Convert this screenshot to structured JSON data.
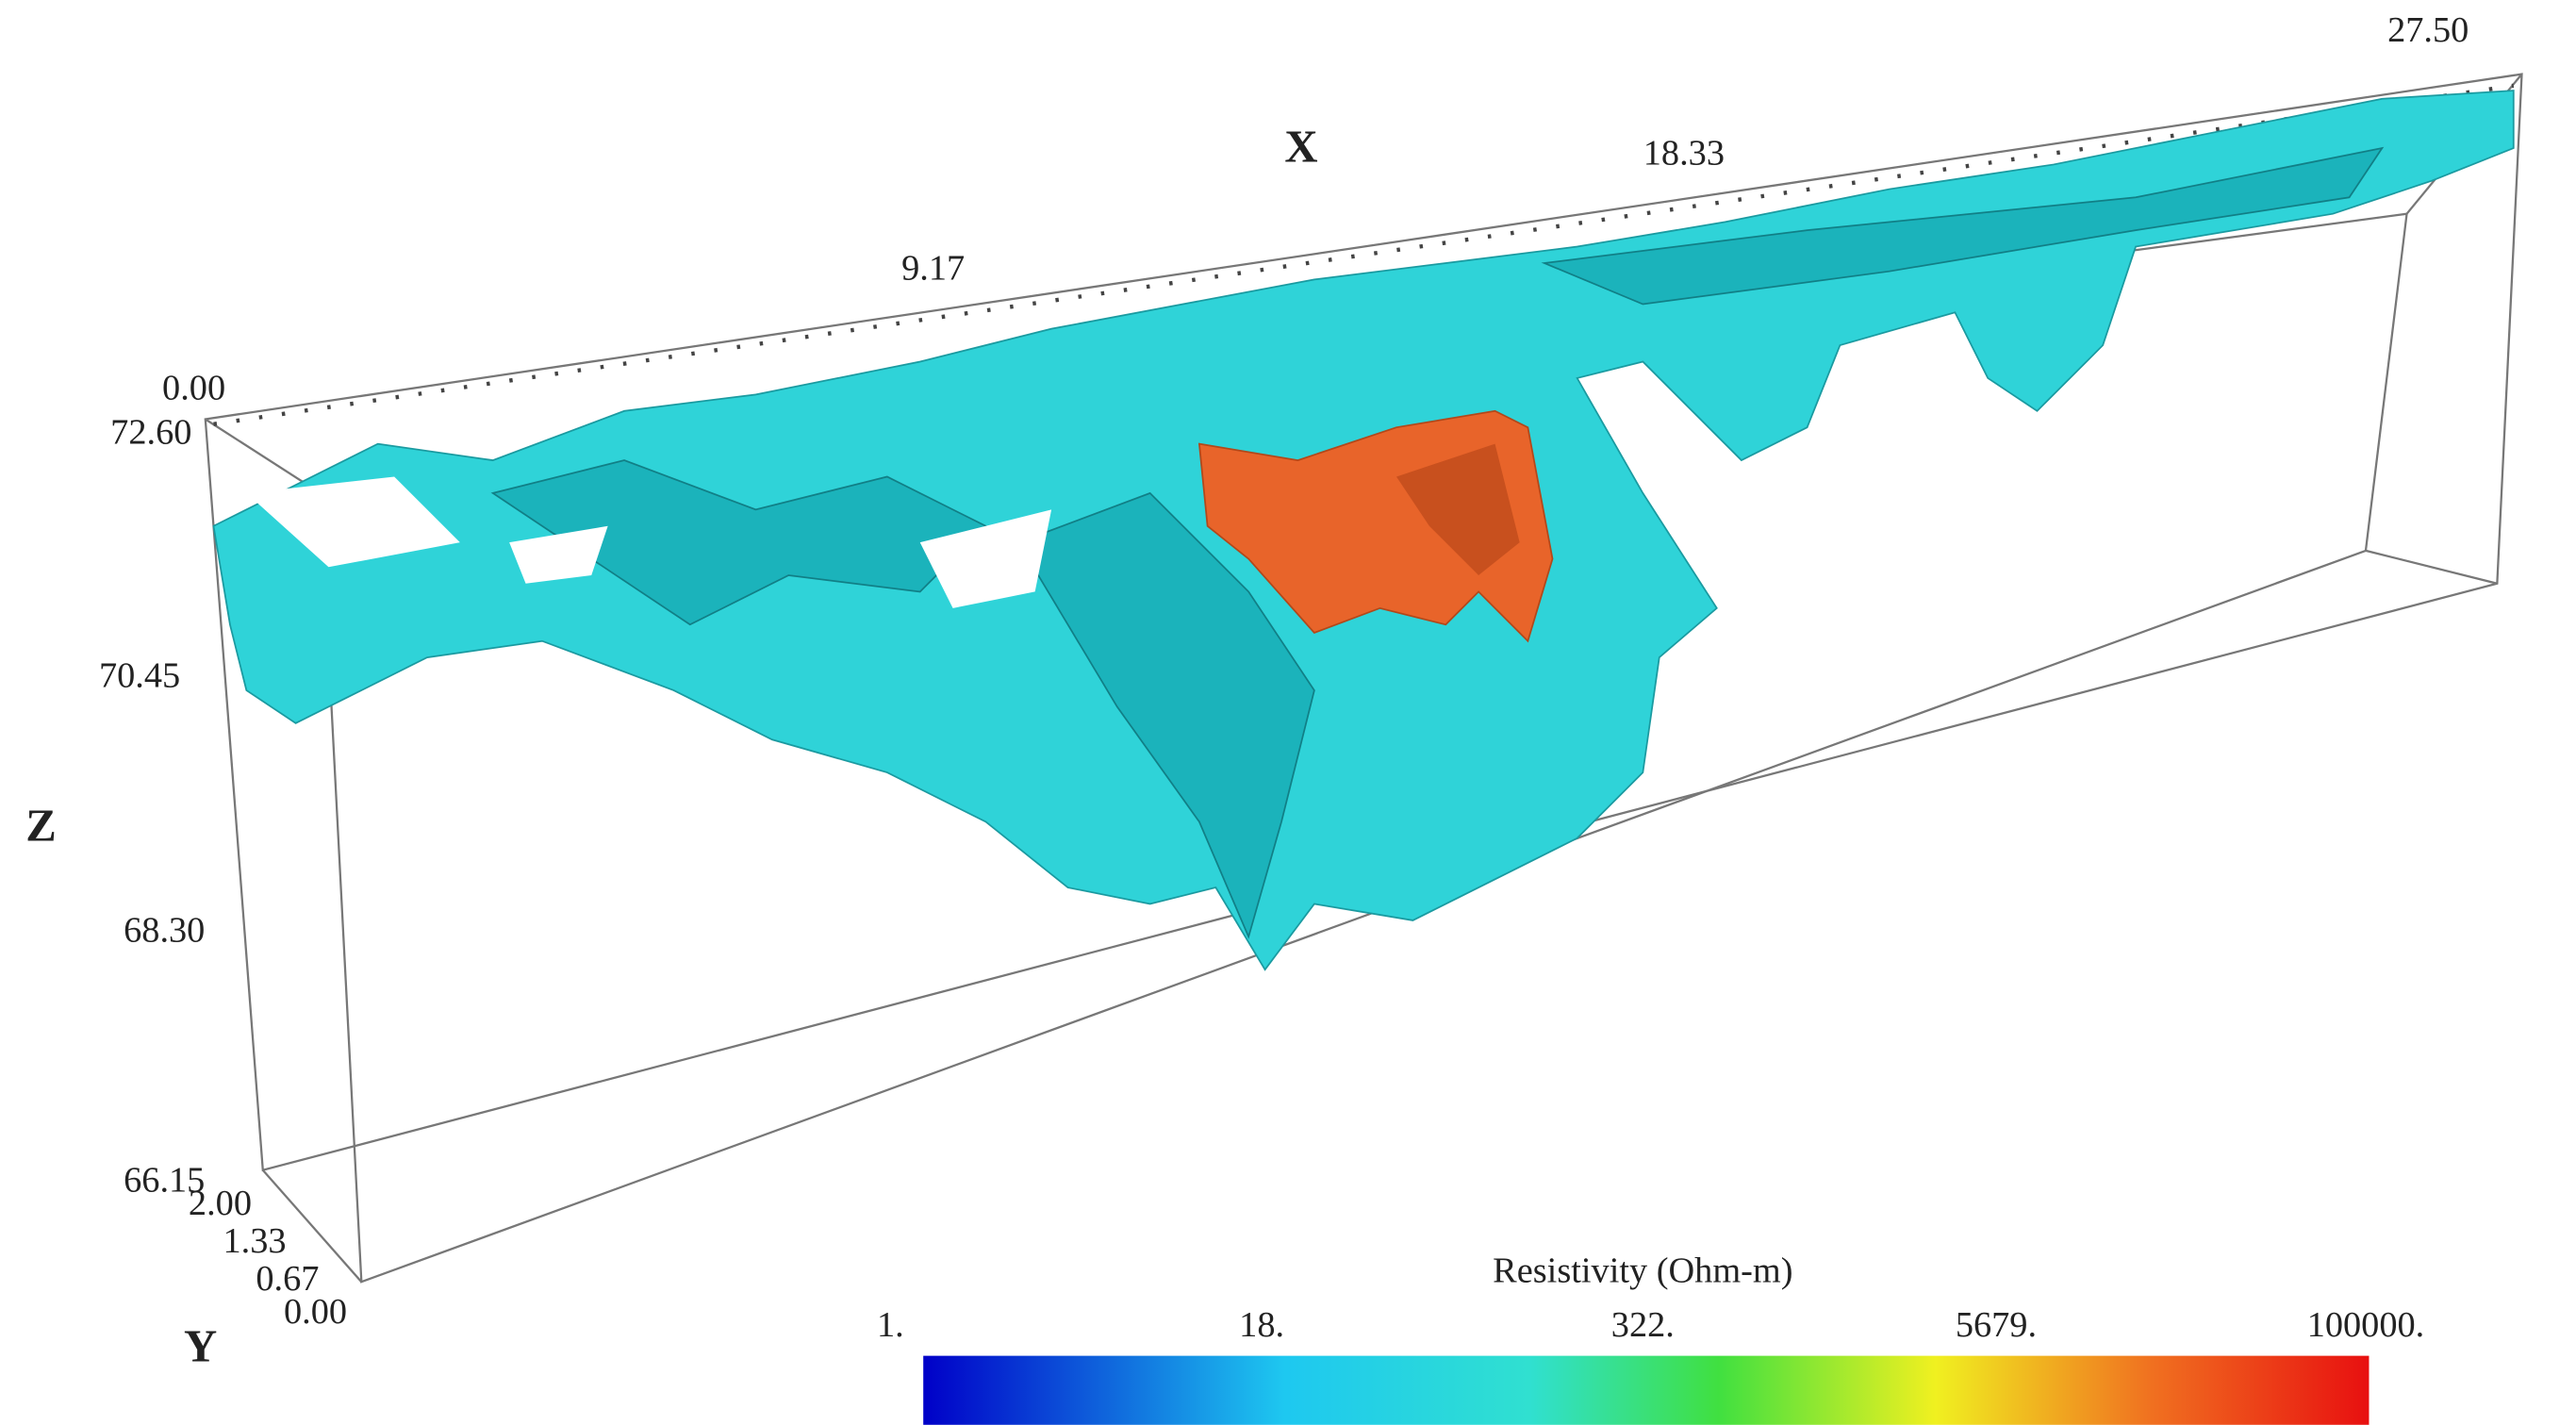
{
  "axes": {
    "x": {
      "label": "X",
      "ticks": [
        "0.00",
        "9.17",
        "18.33",
        "27.50"
      ]
    },
    "y": {
      "label": "Y",
      "ticks": [
        "0.00",
        "0.67",
        "1.33",
        "2.00"
      ]
    },
    "z": {
      "label": "Z",
      "ticks": [
        "66.15",
        "68.30",
        "70.45",
        "72.60"
      ]
    }
  },
  "colorbar": {
    "title": "Resistivity (Ohm-m)",
    "ticks": [
      "1.",
      "18.",
      "322.",
      "5679.",
      "100000."
    ]
  }
}
